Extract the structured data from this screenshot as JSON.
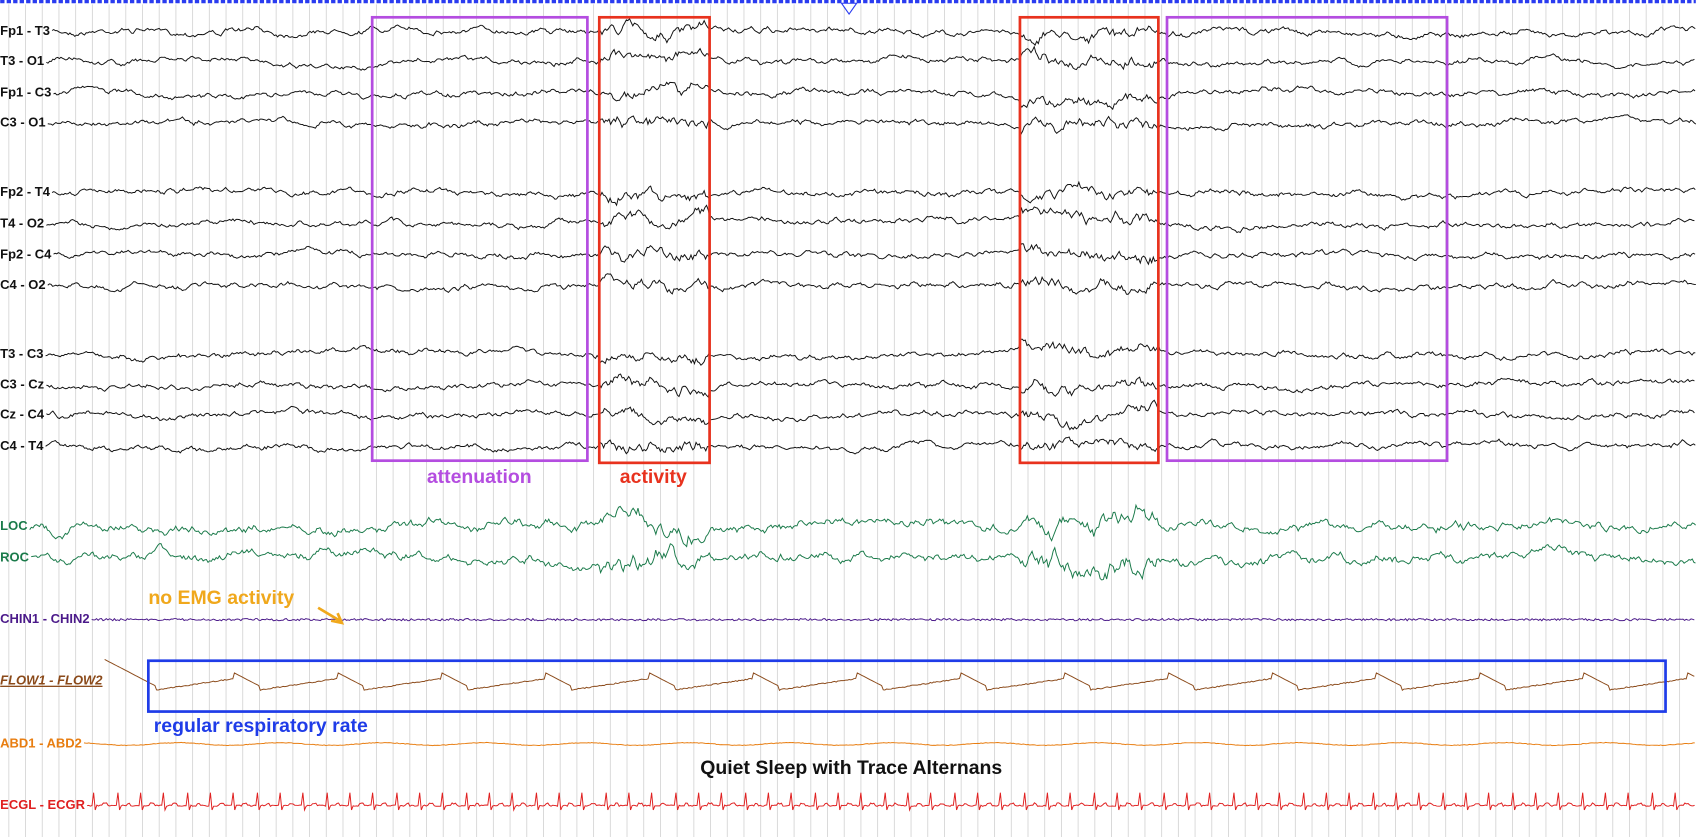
{
  "channels": [
    "Fp1 - T3",
    "T3 - O1",
    "Fp1 - C3",
    "C3 - O1",
    "Fp2 - T4",
    "T4 - O2",
    "Fp2 - C4",
    "C4 - O2",
    "T3 - C3",
    "C3 - Cz",
    "Cz - C4",
    "C4 - T4",
    "LOC",
    "ROC",
    "CHIN1 - CHIN2",
    "FLOW1 - FLOW2",
    "ABD1 - ABD2",
    "ECGL - ECGR"
  ],
  "annotations": {
    "attenuation": "attenuation",
    "activity": "activity",
    "emg": "no EMG activity",
    "respiration": "regular respiratory rate"
  },
  "title": "Quiet Sleep with Trace Alternans"
}
